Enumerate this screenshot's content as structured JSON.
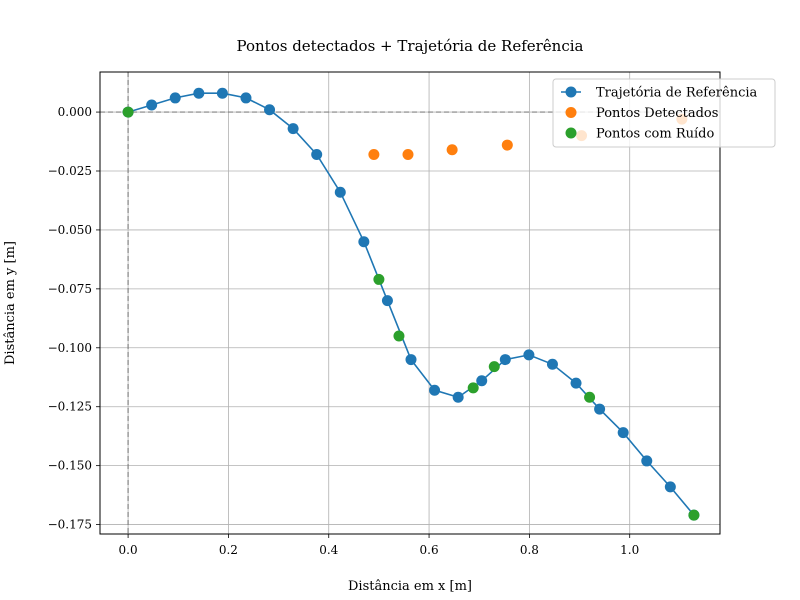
{
  "chart_data": {
    "type": "scatter",
    "title": "Pontos detectados + Trajetória de Referência",
    "xlabel": "Distância em x [m]",
    "ylabel": "Distância em y [m]",
    "xlim": [
      -0.056,
      1.18
    ],
    "ylim": [
      -0.179,
      0.017
    ],
    "xticks": [
      0.0,
      0.2,
      0.4,
      0.6,
      0.8,
      1.0
    ],
    "xtick_labels": [
      "0.0",
      "0.2",
      "0.4",
      "0.6",
      "0.8",
      "1.0"
    ],
    "yticks": [
      0.0,
      -0.025,
      -0.05,
      -0.075,
      -0.1,
      -0.125,
      -0.15,
      -0.175
    ],
    "ytick_labels": [
      "0.000",
      "−0.025",
      "−0.050",
      "−0.075",
      "−0.100",
      "−0.125",
      "−0.150",
      "−0.175"
    ],
    "grid": true,
    "legend_position": "top-right",
    "reference_lines": {
      "x": 0.0,
      "y": 0.0,
      "style": "dashed",
      "color": "#808080"
    },
    "series": [
      {
        "name": "Trajetória de Referência",
        "color": "#1f77b4",
        "style": "line-marker",
        "x": [
          0.0,
          0.047,
          0.094,
          0.141,
          0.188,
          0.235,
          0.282,
          0.329,
          0.376,
          0.423,
          0.47,
          0.517,
          0.564,
          0.611,
          0.658,
          0.705,
          0.752,
          0.799,
          0.846,
          0.893,
          0.94,
          0.987,
          1.034,
          1.081,
          1.128
        ],
        "y": [
          0.0,
          0.003,
          0.006,
          0.008,
          0.008,
          0.006,
          0.001,
          -0.007,
          -0.018,
          -0.034,
          -0.055,
          -0.08,
          -0.105,
          -0.118,
          -0.121,
          -0.114,
          -0.105,
          -0.103,
          -0.107,
          -0.115,
          -0.126,
          -0.136,
          -0.148,
          -0.159,
          -0.171
        ]
      },
      {
        "name": "Pontos Detectados",
        "color": "#ff7f0e",
        "style": "marker",
        "x": [
          0.49,
          0.558,
          0.646,
          0.756,
          0.904,
          1.104
        ],
        "y": [
          -0.018,
          -0.018,
          -0.016,
          -0.014,
          -0.01,
          -0.003
        ]
      },
      {
        "name": "Pontos com Ruído",
        "color": "#2ca02c",
        "style": "marker",
        "x": [
          0.0,
          0.5,
          0.54,
          0.688,
          0.73,
          0.92,
          1.128
        ],
        "y": [
          0.0,
          -0.071,
          -0.095,
          -0.117,
          -0.108,
          -0.121,
          -0.171
        ]
      }
    ]
  }
}
